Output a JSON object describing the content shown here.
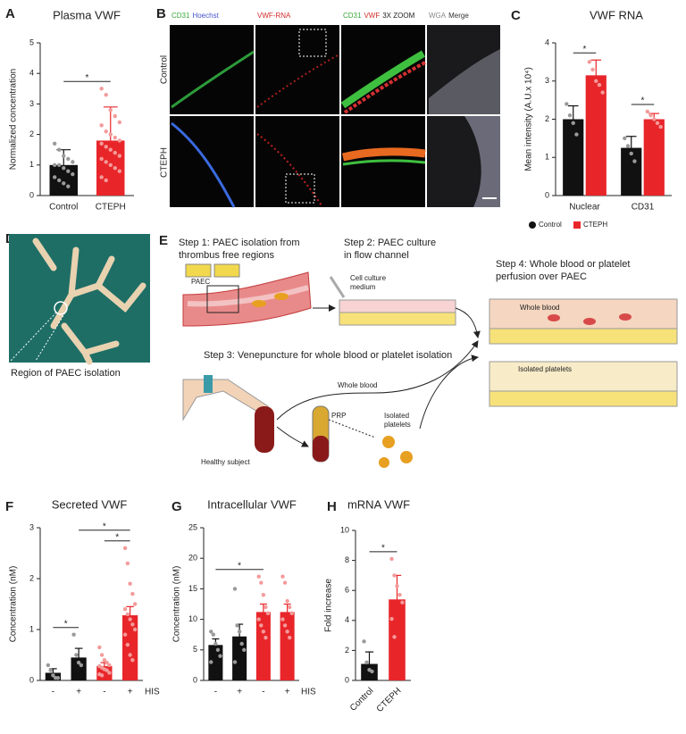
{
  "chart_data": [
    {
      "type": "bar",
      "panel": "A",
      "title": "Plasma VWF",
      "ylabel": "Normalized concentration",
      "categories": [
        "Control",
        "CTEPH"
      ],
      "values": [
        1.0,
        1.8
      ],
      "errors": [
        0.5,
        1.1
      ],
      "colors": [
        "#111111",
        "#e8262a"
      ],
      "point_colors": [
        "#9a9a9a",
        "#f49a9a"
      ],
      "points": [
        [
          1.7,
          1.5,
          1.3,
          1.2,
          1.1,
          1.0,
          1.0,
          0.9,
          0.8,
          0.7,
          0.6,
          0.5,
          0.4,
          0.3
        ],
        [
          3.5,
          3.3,
          2.8,
          2.6,
          2.4,
          2.3,
          2.1,
          2.0,
          1.9,
          1.8,
          1.7,
          1.6,
          1.5,
          1.4,
          1.3,
          1.2,
          1.1,
          1.0,
          0.9,
          0.8,
          0.6,
          0.5
        ]
      ],
      "ylim": [
        0,
        5
      ],
      "yticks": [
        0,
        1,
        2,
        3,
        4,
        5
      ],
      "significance": [
        {
          "between": [
            0,
            1
          ],
          "label": "*"
        }
      ]
    },
    {
      "type": "bar",
      "panel": "C",
      "title": "VWF RNA",
      "ylabel": "Mean intensity (A.U.x 10⁴)",
      "categories": [
        "Nuclear",
        "CD31"
      ],
      "series": [
        {
          "name": "Control",
          "color": "#111111",
          "point_color": "#9a9a9a",
          "values": [
            2.0,
            1.25
          ],
          "errors": [
            0.35,
            0.3
          ],
          "points": [
            [
              2.4,
              2.1,
              1.9,
              1.6
            ],
            [
              1.5,
              1.3,
              1.1,
              0.9
            ]
          ]
        },
        {
          "name": "CTEPH",
          "color": "#e8262a",
          "point_color": "#f49a9a",
          "values": [
            3.15,
            2.0
          ],
          "errors": [
            0.4,
            0.15
          ],
          "points": [
            [
              3.5,
              3.3,
              3.0,
              2.9,
              2.7
            ],
            [
              2.2,
              2.1,
              2.0,
              1.9,
              1.8
            ]
          ]
        }
      ],
      "ylim": [
        0,
        4
      ],
      "yticks": [
        0,
        1,
        2,
        3,
        4
      ],
      "legend": "bottom",
      "significance": [
        {
          "between": [
            0,
            1
          ],
          "label": "*"
        },
        {
          "between": [
            2,
            3
          ],
          "label": "*"
        }
      ]
    },
    {
      "type": "bar",
      "panel": "F",
      "title": "Secreted VWF",
      "ylabel": "Concentration (nM)",
      "categories": [
        "-",
        "+",
        "-",
        "+"
      ],
      "group_label": "HIS",
      "values": [
        0.15,
        0.45,
        0.28,
        1.28
      ],
      "errors": [
        0.08,
        0.18,
        0.07,
        0.17
      ],
      "colors": [
        "#111111",
        "#111111",
        "#e8262a",
        "#e8262a"
      ],
      "point_colors": [
        "#9a9a9a",
        "#9a9a9a",
        "#f49a9a",
        "#f49a9a"
      ],
      "points": [
        [
          0.3,
          0.2,
          0.1,
          0.05,
          0.05
        ],
        [
          0.9,
          0.5,
          0.35,
          0.3
        ],
        [
          0.65,
          0.5,
          0.4,
          0.35,
          0.3,
          0.28,
          0.25,
          0.22,
          0.2,
          0.15,
          0.12,
          0.1
        ],
        [
          2.6,
          2.3,
          1.9,
          1.7,
          1.5,
          1.4,
          1.3,
          1.2,
          1.1,
          1.0,
          0.9,
          0.7,
          0.5,
          0.4
        ]
      ],
      "ylim": [
        0,
        3
      ],
      "yticks": [
        0,
        1,
        2,
        3
      ],
      "significance": [
        {
          "between": [
            0,
            1
          ],
          "label": "*"
        },
        {
          "between": [
            2,
            3
          ],
          "label": "*"
        },
        {
          "between": [
            1,
            3
          ],
          "label": "*"
        }
      ]
    },
    {
      "type": "bar",
      "panel": "G",
      "title": "Intracellular VWF",
      "ylabel": "Concentration (nM)",
      "categories": [
        "-",
        "+",
        "-",
        "+"
      ],
      "group_label": "HIS",
      "values": [
        5.8,
        7.2,
        11.2,
        11.2
      ],
      "errors": [
        1.0,
        2.0,
        1.3,
        1.3
      ],
      "colors": [
        "#111111",
        "#111111",
        "#e8262a",
        "#e8262a"
      ],
      "point_colors": [
        "#9a9a9a",
        "#9a9a9a",
        "#f49a9a",
        "#f49a9a"
      ],
      "points": [
        [
          8,
          7.5,
          6,
          5,
          4,
          3
        ],
        [
          15,
          9,
          8,
          6,
          5,
          3
        ],
        [
          17,
          16,
          14,
          12,
          11,
          10,
          9,
          8,
          7
        ],
        [
          17,
          16,
          13,
          12,
          11,
          10,
          9,
          8,
          7
        ]
      ],
      "ylim": [
        0,
        25
      ],
      "yticks": [
        0,
        5,
        10,
        15,
        20,
        25
      ],
      "significance": [
        {
          "between": [
            0,
            2
          ],
          "label": "*"
        }
      ]
    },
    {
      "type": "bar",
      "panel": "H",
      "title": "mRNA VWF",
      "ylabel": "Fold increase",
      "categories": [
        "Control",
        "CTEPH"
      ],
      "rotate_labels": true,
      "values": [
        1.1,
        5.4
      ],
      "errors": [
        0.8,
        1.6
      ],
      "colors": [
        "#111111",
        "#e8262a"
      ],
      "point_colors": [
        "#9a9a9a",
        "#f49a9a"
      ],
      "points": [
        [
          2.6,
          1.2,
          0.7,
          0.6
        ],
        [
          8.1,
          7.0,
          6.3,
          5.7,
          5.2,
          4.1,
          2.9
        ]
      ],
      "ylim": [
        0,
        10
      ],
      "yticks": [
        0,
        2,
        4,
        6,
        8,
        10
      ],
      "significance": [
        {
          "between": [
            0,
            1
          ],
          "label": "*"
        }
      ]
    }
  ],
  "panel_b": {
    "panel": "B",
    "headers": [
      [
        {
          "text": "CD31",
          "color": "#3aa83a"
        },
        {
          "text": "Hoechst",
          "color": "#4455cc"
        }
      ],
      [
        {
          "text": "VWF-RNA",
          "color": "#d42a2a"
        }
      ],
      [
        {
          "text": "CD31",
          "color": "#3aa83a"
        },
        {
          "text": "VWF",
          "color": "#d42a2a"
        },
        {
          "text": "3X ZOOM",
          "color": "#222222"
        }
      ],
      [
        {
          "text": "WGA",
          "color": "#888888"
        },
        {
          "text": "Merge",
          "color": "#333333"
        }
      ]
    ],
    "rows": [
      "Control",
      "CTEPH"
    ]
  },
  "panel_d": {
    "panel": "D",
    "caption": "Region of PAEC isolation"
  },
  "panel_e": {
    "panel": "E",
    "step1": [
      "Step 1: PAEC isolation from",
      "thrombus free regions"
    ],
    "paec": "PAEC",
    "step2": [
      "Step 2: PAEC culture",
      "in flow channel"
    ],
    "medium": [
      "Cell culture",
      "medium"
    ],
    "step3": "Step 3: Venepuncture for whole blood or platelet isolation",
    "whole_blood_arrow": "Whole blood",
    "prp": "PRP",
    "isolated_platelets_arrow": [
      "Isolated",
      "platelets"
    ],
    "subject": "Healthy subject",
    "step4": [
      "Step 4: Whole blood or platelet",
      "perfusion over PAEC"
    ],
    "box_whole_blood": "Whole blood",
    "box_platelets": "Isolated platelets"
  }
}
